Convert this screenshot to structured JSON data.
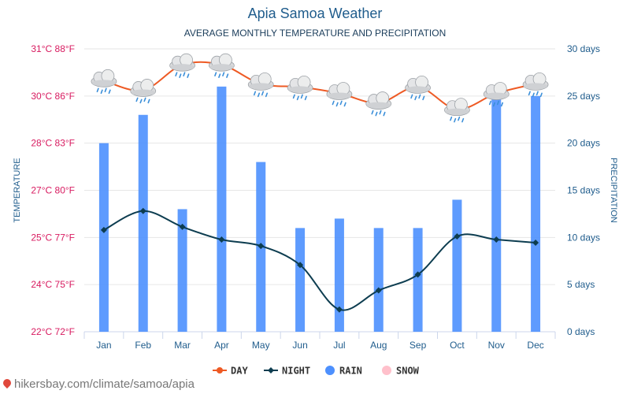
{
  "title": "Apia Samoa Weather",
  "subtitle": "AVERAGE MONTHLY TEMPERATURE AND PRECIPITATION",
  "footer": "hikersbay.com/climate/samoa/apia",
  "colors": {
    "day": "#ee5a24",
    "night": "#0d3d50",
    "rain": "#4d90fe",
    "snow": "#ffc0cb",
    "left_axis": "#d81b60",
    "right_axis": "#1f5c8c"
  },
  "chart_data": {
    "type": "line",
    "categories": [
      "Jan",
      "Feb",
      "Mar",
      "Apr",
      "May",
      "Jun",
      "Jul",
      "Aug",
      "Sep",
      "Oct",
      "Nov",
      "Dec"
    ],
    "ylabel_left": "TEMPERATURE",
    "ylabel_right": "PRECIPITATION",
    "left_ticks": [
      "22°C 72°F",
      "24°C 75°F",
      "25°C 77°F",
      "27°C 80°F",
      "28°C 83°F",
      "30°C 86°F",
      "31°C 88°F"
    ],
    "right_ticks": [
      "0 days",
      "5 days",
      "10 days",
      "15 days",
      "20 days",
      "25 days",
      "30 days"
    ],
    "ylim_left_c": [
      22.2,
      31.1
    ],
    "ylim_right_days": [
      0,
      30
    ],
    "grid": true,
    "series": [
      {
        "name": "DAY",
        "type": "line",
        "unit": "°C",
        "icon": "rain-cloud-icon",
        "values": [
          30.1,
          29.8,
          30.6,
          30.6,
          30.0,
          29.9,
          29.7,
          29.4,
          29.9,
          29.2,
          29.7,
          30.0
        ]
      },
      {
        "name": "NIGHT",
        "type": "line",
        "unit": "°C",
        "values": [
          25.4,
          26.0,
          25.5,
          25.1,
          24.9,
          24.3,
          22.9,
          23.5,
          24.0,
          25.2,
          25.1,
          25.0
        ]
      },
      {
        "name": "RAIN",
        "type": "bar",
        "unit": "days",
        "values": [
          20,
          23,
          13,
          26,
          18,
          11,
          12,
          11,
          11,
          14,
          25,
          25
        ]
      },
      {
        "name": "SNOW",
        "type": "bar",
        "unit": "days",
        "values": [
          0,
          0,
          0,
          0,
          0,
          0,
          0,
          0,
          0,
          0,
          0,
          0
        ]
      }
    ]
  }
}
